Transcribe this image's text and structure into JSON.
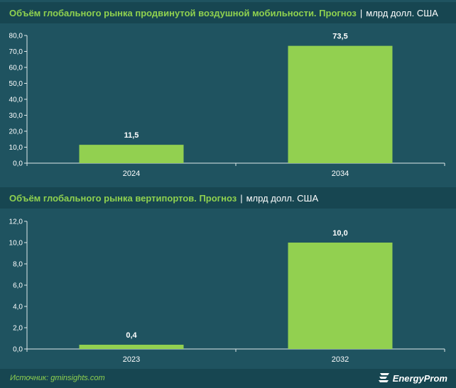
{
  "chart_data": [
    {
      "type": "bar",
      "title": "Объём глобального рынка продвинутой воздушной мобильности. Прогноз",
      "unit": "млрд долл. США",
      "categories": [
        "2024",
        "2034"
      ],
      "values": [
        11.5,
        73.5
      ],
      "value_labels": [
        "11,5",
        "73,5"
      ],
      "ylim": [
        0,
        80
      ],
      "yticks": [
        "0,0",
        "10,0",
        "20,0",
        "30,0",
        "40,0",
        "50,0",
        "60,0",
        "70,0",
        "80,0"
      ],
      "bar_color": "#92d050",
      "grid": false
    },
    {
      "type": "bar",
      "title": "Объём глобального рынка вертипортов. Прогноз",
      "unit": "млрд долл. США",
      "categories": [
        "2023",
        "2032"
      ],
      "values": [
        0.4,
        10.0
      ],
      "value_labels": [
        "0,4",
        "10,0"
      ],
      "ylim": [
        0,
        12
      ],
      "yticks": [
        "0,0",
        "2,0",
        "4,0",
        "6,0",
        "8,0",
        "10,0",
        "12,0"
      ],
      "bar_color": "#92d050",
      "grid": false
    }
  ],
  "separator": "|",
  "footer": {
    "source": "Источник: gminsights.com",
    "brand": "EnergyProm",
    "brand_icon": "energyprom-logo-icon"
  },
  "colors": {
    "background": "#1f5360",
    "title_band": "#174651",
    "title_accent": "#8fd14f",
    "axis_text": "#ffffff"
  }
}
